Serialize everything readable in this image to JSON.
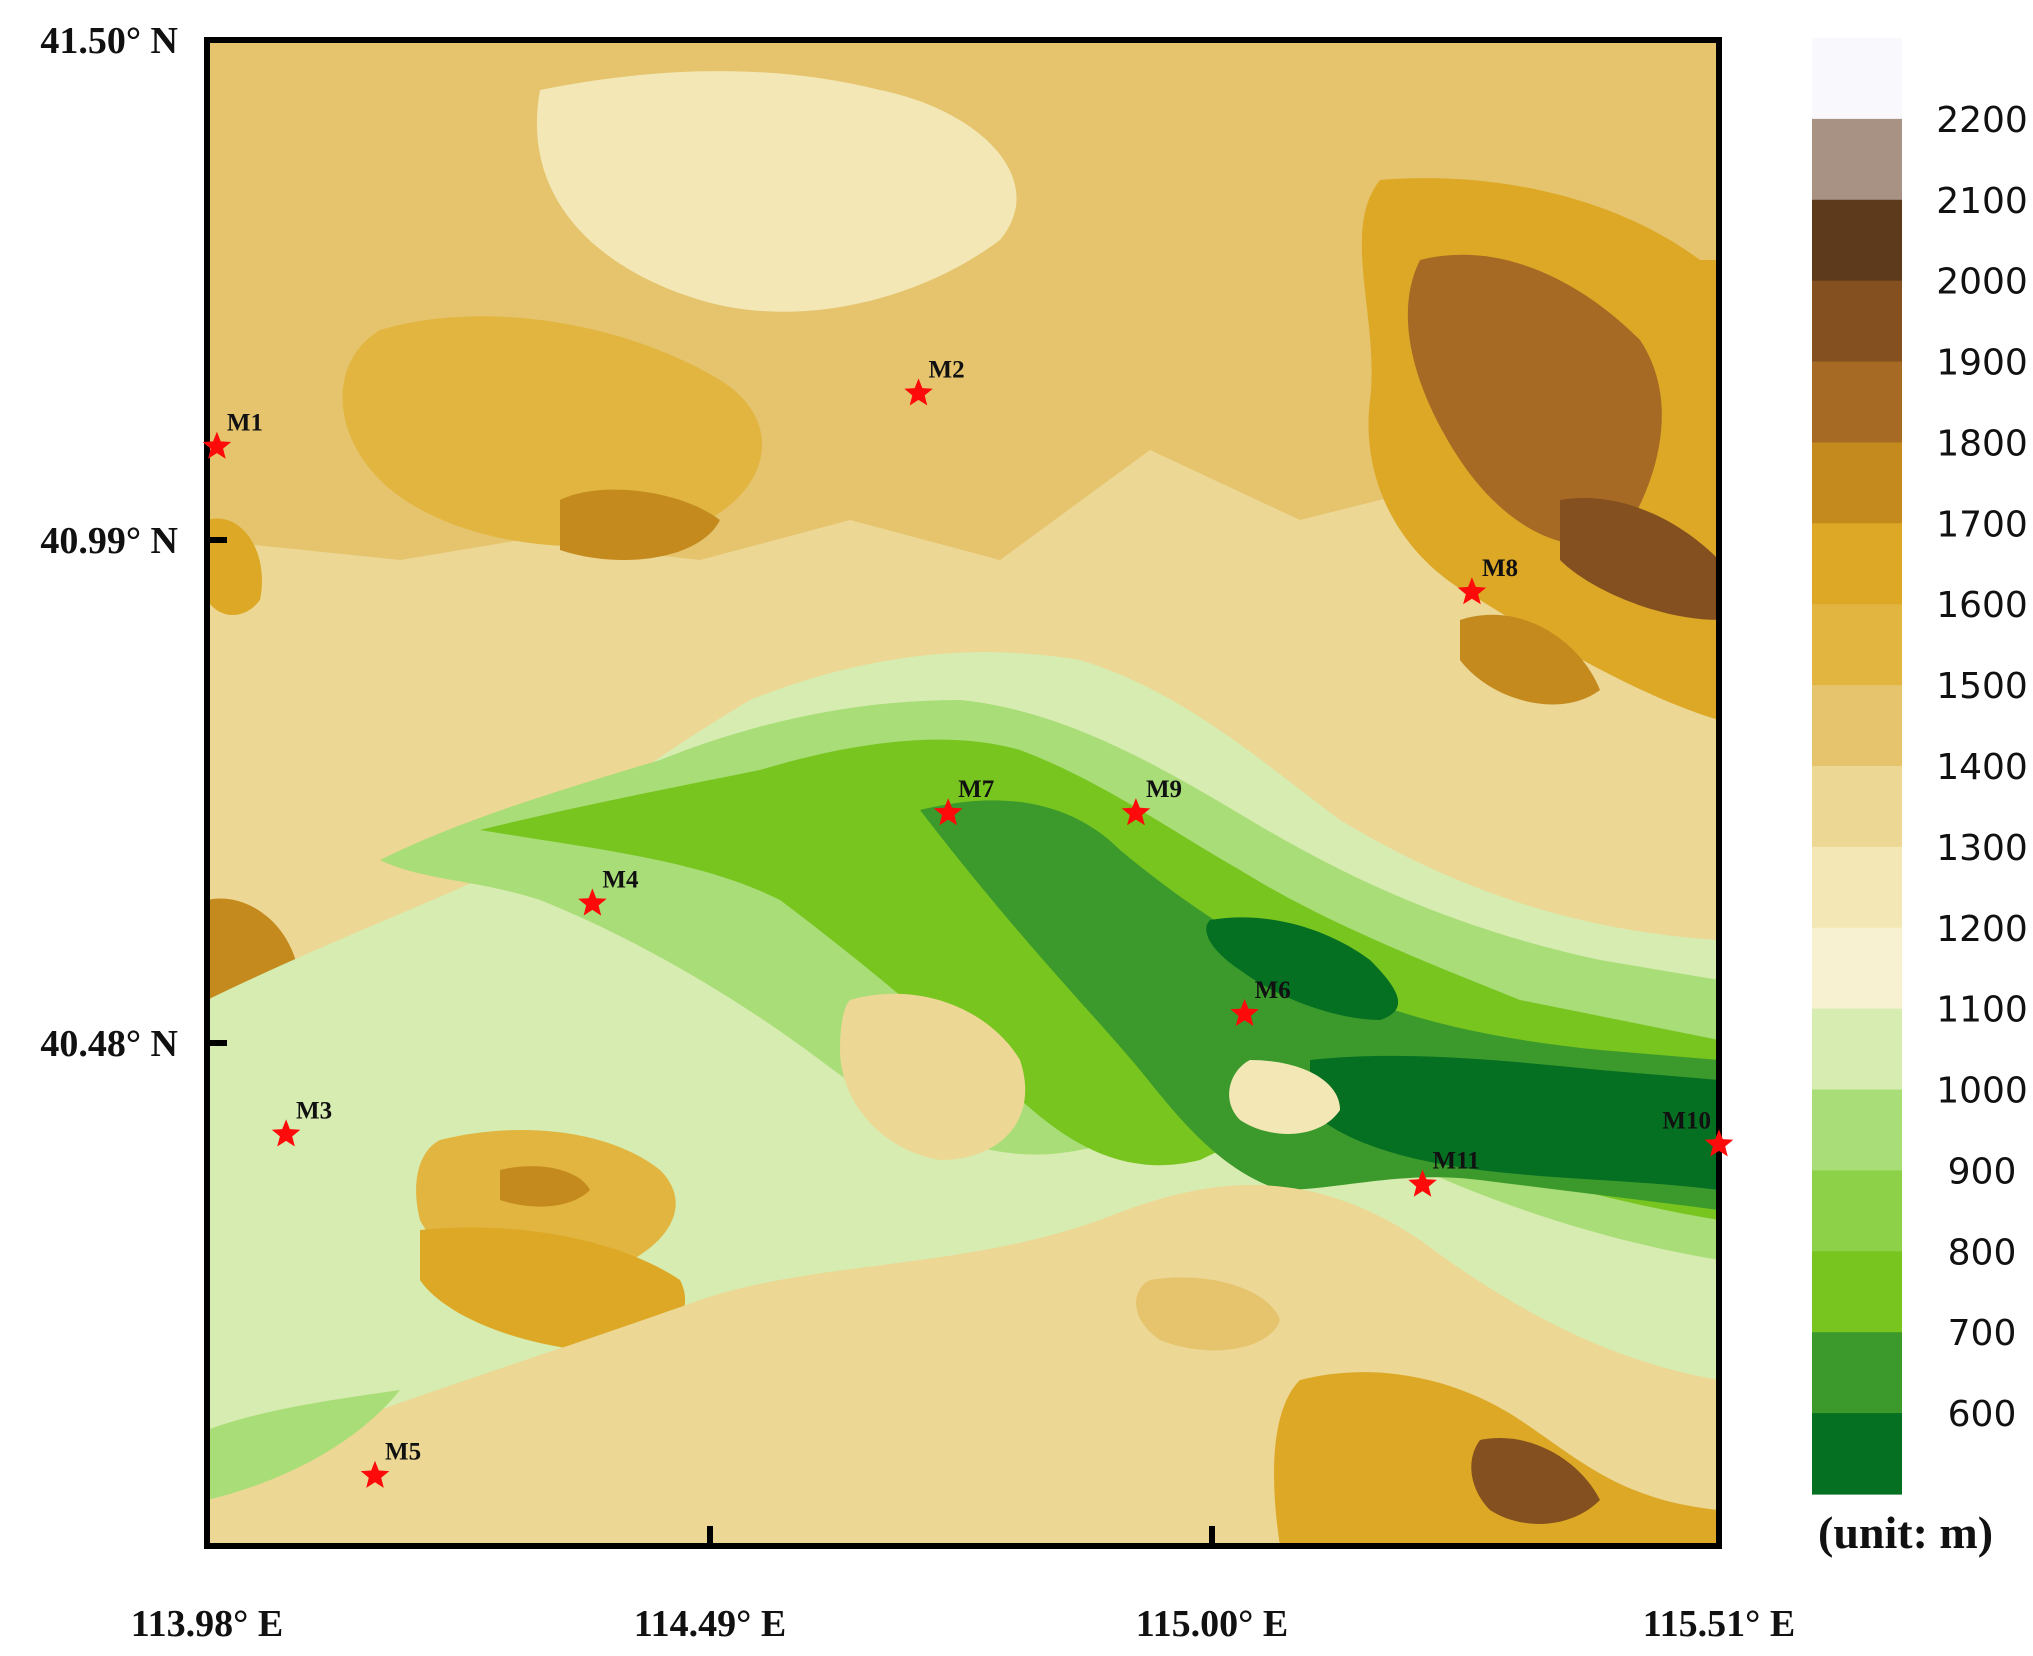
{
  "map": {
    "lat_labels": [
      "41.50° N",
      "40.99° N",
      "40.48° N"
    ],
    "lon_labels": [
      "113.98° E",
      "114.49° E",
      "115.00° E",
      "115.51° E"
    ],
    "extent": {
      "lon": [
        113.98,
        115.51
      ],
      "lat": [
        40.0,
        41.5
      ]
    }
  },
  "stations": [
    {
      "name": "M1",
      "lon": 113.99,
      "lat": 41.095
    },
    {
      "name": "M2",
      "lon": 114.7,
      "lat": 41.148
    },
    {
      "name": "M3",
      "lon": 114.06,
      "lat": 40.41
    },
    {
      "name": "M4",
      "lon": 114.37,
      "lat": 40.64
    },
    {
      "name": "M5",
      "lon": 114.15,
      "lat": 40.07
    },
    {
      "name": "M6",
      "lon": 115.03,
      "lat": 40.53
    },
    {
      "name": "M7",
      "lon": 114.73,
      "lat": 40.73
    },
    {
      "name": "M8",
      "lon": 115.26,
      "lat": 40.95
    },
    {
      "name": "M9",
      "lon": 114.92,
      "lat": 40.73
    },
    {
      "name": "M10",
      "lon": 115.51,
      "lat": 40.4
    },
    {
      "name": "M11",
      "lon": 115.21,
      "lat": 40.36
    }
  ],
  "colorbar": {
    "levels": [
      "2200",
      "2100",
      "2000",
      "1900",
      "1800",
      "1700",
      "1600",
      "1500",
      "1400",
      "1300",
      "1200",
      "1100",
      "1000",
      "900",
      "800",
      "700",
      "600"
    ],
    "colors": [
      "#f8f8fd",
      "#a89283",
      "#5e3a1c",
      "#84501f",
      "#a66a25",
      "#c48a1e",
      "#dda825",
      "#e1b53f",
      "#e5c46d",
      "#ecd794",
      "#f3e7b5",
      "#f7f1d2",
      "#d7ecb0",
      "#a8dd77",
      "#8cd148",
      "#78c51f",
      "#3c9a2c",
      "#056f22"
    ],
    "unit": "(unit: m)"
  }
}
